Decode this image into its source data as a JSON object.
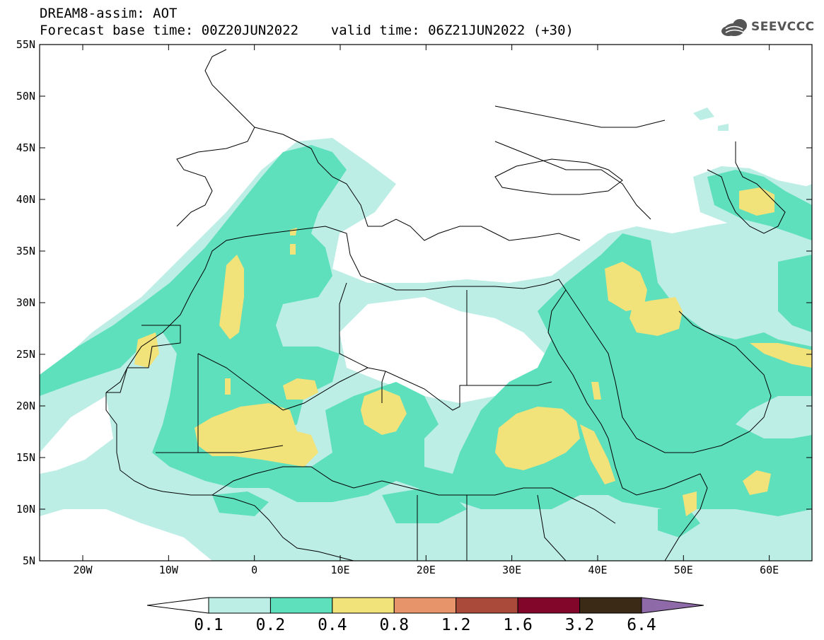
{
  "title": {
    "line1": "DREAM8-assim: AOT",
    "line2": "Forecast base time: 00Z20JUN2022    valid time: 06Z21JUN2022 (+30)"
  },
  "logo": {
    "text": "SEEVCCC",
    "icon": "cloud-logo-icon"
  },
  "axes": {
    "lat_labels": [
      "55N",
      "50N",
      "45N",
      "40N",
      "35N",
      "30N",
      "25N",
      "20N",
      "15N",
      "10N",
      "5N"
    ],
    "lon_labels": [
      "20W",
      "10W",
      "0",
      "10E",
      "20E",
      "30E",
      "40E",
      "50E",
      "60E"
    ]
  },
  "colorbar": {
    "labels": [
      "0.1",
      "0.2",
      "0.4",
      "0.8",
      "1.2",
      "1.6",
      "3.2",
      "6.4"
    ],
    "colors": [
      "#ffffff",
      "#bdeee6",
      "#5fe0bd",
      "#f2e27a",
      "#e8946a",
      "#aa4a3a",
      "#82062a",
      "#3a2a16",
      "#8e6aa8"
    ]
  },
  "colors": {
    "low": "#bdeee6",
    "mid": "#5fe0bd",
    "high": "#f2e27a"
  }
}
